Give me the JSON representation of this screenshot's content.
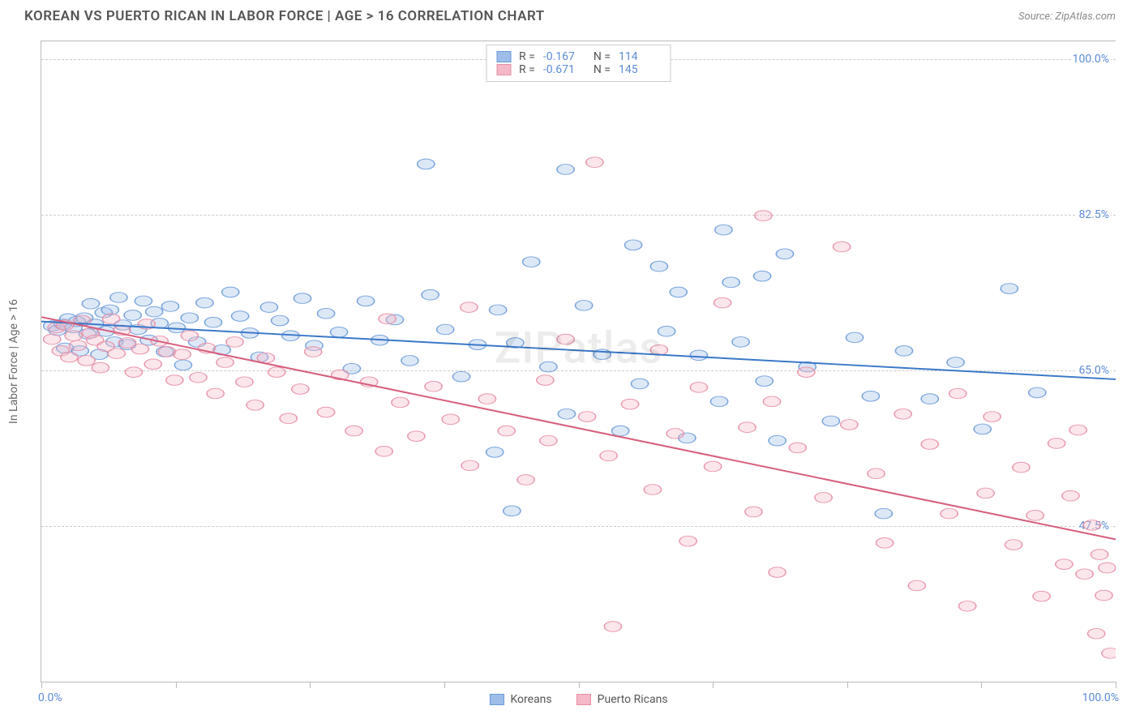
{
  "title": "KOREAN VS PUERTO RICAN IN LABOR FORCE | AGE > 16 CORRELATION CHART",
  "source": "Source: ZipAtlas.com",
  "watermark": "ZIPatlas",
  "yaxis_title": "In Labor Force | Age > 16",
  "chart": {
    "type": "scatter",
    "background_color": "#ffffff",
    "grid_color": "#cccccc",
    "grid_dash": "4,4",
    "xlim": [
      0,
      100
    ],
    "ylim": [
      30,
      102
    ],
    "xticks": [
      0,
      12.5,
      25,
      37.5,
      50,
      62.5,
      75,
      87.5,
      100
    ],
    "yticks": [
      47.5,
      65.0,
      82.5,
      100.0
    ],
    "ytick_labels": [
      "47.5%",
      "65.0%",
      "82.5%",
      "100.0%"
    ],
    "x_start_label": "0.0%",
    "x_end_label": "100.0%",
    "marker_radius": 8,
    "marker_fill_opacity": 0.35,
    "marker_stroke_opacity": 0.9,
    "line_width": 2.5,
    "series": [
      {
        "name": "Koreans",
        "color_fill": "#9dbde8",
        "color_stroke": "#6b9bd8",
        "line_color": "#3b78c9",
        "R": "-0.167",
        "N": "114",
        "trend": {
          "x1": 0,
          "y1": 70.5,
          "x2": 100,
          "y2": 64.0
        },
        "points": [
          [
            1,
            70
          ],
          [
            1.5,
            69.5
          ],
          [
            2,
            70.2
          ],
          [
            2.2,
            67.5
          ],
          [
            2.5,
            70.8
          ],
          [
            3,
            69.8
          ],
          [
            3.3,
            70.5
          ],
          [
            3.6,
            67.2
          ],
          [
            4,
            70.9
          ],
          [
            4.3,
            69.1
          ],
          [
            4.6,
            72.5
          ],
          [
            5,
            70.2
          ],
          [
            5.4,
            66.8
          ],
          [
            5.8,
            71.5
          ],
          [
            6,
            69.4
          ],
          [
            6.4,
            71.8
          ],
          [
            6.8,
            68.2
          ],
          [
            7.2,
            73.2
          ],
          [
            7.6,
            70.1
          ],
          [
            8,
            67.9
          ],
          [
            8.5,
            71.2
          ],
          [
            9,
            69.6
          ],
          [
            9.5,
            72.8
          ],
          [
            10,
            68.4
          ],
          [
            10.5,
            71.6
          ],
          [
            11,
            70.3
          ],
          [
            11.5,
            67.1
          ],
          [
            12,
            72.2
          ],
          [
            12.6,
            69.8
          ],
          [
            13.2,
            65.6
          ],
          [
            13.8,
            70.9
          ],
          [
            14.5,
            68.2
          ],
          [
            15.2,
            72.6
          ],
          [
            16,
            70.4
          ],
          [
            16.8,
            67.3
          ],
          [
            17.6,
            73.8
          ],
          [
            18.5,
            71.1
          ],
          [
            19.4,
            69.2
          ],
          [
            20.3,
            66.5
          ],
          [
            21.2,
            72.1
          ],
          [
            22.2,
            70.6
          ],
          [
            23.2,
            68.9
          ],
          [
            24.3,
            73.1
          ],
          [
            25.4,
            67.8
          ],
          [
            26.5,
            71.4
          ],
          [
            27.7,
            69.3
          ],
          [
            28.9,
            65.2
          ],
          [
            30.2,
            72.8
          ],
          [
            31.5,
            68.4
          ],
          [
            32.9,
            70.7
          ],
          [
            34.3,
            66.1
          ],
          [
            35.8,
            88.2
          ],
          [
            36.2,
            73.5
          ],
          [
            37.6,
            69.6
          ],
          [
            39.1,
            64.3
          ],
          [
            40.6,
            67.9
          ],
          [
            42.2,
            55.8
          ],
          [
            42.5,
            71.8
          ],
          [
            43.8,
            49.2
          ],
          [
            44.1,
            68.1
          ],
          [
            45.6,
            77.2
          ],
          [
            47.2,
            65.4
          ],
          [
            48.8,
            87.6
          ],
          [
            48.9,
            60.1
          ],
          [
            50.5,
            72.3
          ],
          [
            52.2,
            66.8
          ],
          [
            53.9,
            58.2
          ],
          [
            55.1,
            79.1
          ],
          [
            55.7,
            63.5
          ],
          [
            57.5,
            76.7
          ],
          [
            58.2,
            69.4
          ],
          [
            59.3,
            73.8
          ],
          [
            60.1,
            57.4
          ],
          [
            61.2,
            66.7
          ],
          [
            63.1,
            61.5
          ],
          [
            63.5,
            80.8
          ],
          [
            64.2,
            74.9
          ],
          [
            65.1,
            68.2
          ],
          [
            67.1,
            75.6
          ],
          [
            67.3,
            63.8
          ],
          [
            68.5,
            57.1
          ],
          [
            69.2,
            78.1
          ],
          [
            71.3,
            65.4
          ],
          [
            73.5,
            59.3
          ],
          [
            75.7,
            68.7
          ],
          [
            77.2,
            62.1
          ],
          [
            78.4,
            48.9
          ],
          [
            80.3,
            67.2
          ],
          [
            82.7,
            61.8
          ],
          [
            85.1,
            65.9
          ],
          [
            87.6,
            58.4
          ],
          [
            90.1,
            74.2
          ],
          [
            92.7,
            62.5
          ]
        ]
      },
      {
        "name": "Puerto Ricans",
        "color_fill": "#f4b8c6",
        "color_stroke": "#e78fa6",
        "line_color": "#d85f7e",
        "R": "-0.671",
        "N": "145",
        "trend": {
          "x1": 0,
          "y1": 71.0,
          "x2": 100,
          "y2": 46.0
        },
        "points": [
          [
            1,
            68.5
          ],
          [
            1.4,
            69.8
          ],
          [
            1.8,
            67.2
          ],
          [
            2.2,
            70.1
          ],
          [
            2.6,
            66.5
          ],
          [
            3,
            68.9
          ],
          [
            3.4,
            67.8
          ],
          [
            3.8,
            70.6
          ],
          [
            4.2,
            66.1
          ],
          [
            4.6,
            69.2
          ],
          [
            5,
            68.4
          ],
          [
            5.5,
            65.3
          ],
          [
            6,
            67.7
          ],
          [
            6.5,
            70.8
          ],
          [
            7,
            66.9
          ],
          [
            7.5,
            69.5
          ],
          [
            8,
            68.1
          ],
          [
            8.6,
            64.8
          ],
          [
            9.2,
            67.4
          ],
          [
            9.8,
            70.2
          ],
          [
            10.4,
            65.7
          ],
          [
            11,
            68.3
          ],
          [
            11.7,
            67.1
          ],
          [
            12.4,
            63.9
          ],
          [
            13.1,
            66.8
          ],
          [
            13.8,
            68.9
          ],
          [
            14.6,
            64.2
          ],
          [
            15.4,
            67.5
          ],
          [
            16.2,
            62.4
          ],
          [
            17.1,
            65.9
          ],
          [
            18,
            68.2
          ],
          [
            18.9,
            63.7
          ],
          [
            19.9,
            61.1
          ],
          [
            20.9,
            66.4
          ],
          [
            21.9,
            64.8
          ],
          [
            23,
            59.6
          ],
          [
            24.1,
            62.9
          ],
          [
            25.3,
            67.1
          ],
          [
            26.5,
            60.3
          ],
          [
            27.8,
            64.5
          ],
          [
            29.1,
            58.2
          ],
          [
            30.5,
            63.7
          ],
          [
            31.9,
            55.9
          ],
          [
            32.2,
            70.8
          ],
          [
            33.4,
            61.4
          ],
          [
            34.9,
            57.6
          ],
          [
            36.5,
            63.2
          ],
          [
            38.1,
            59.5
          ],
          [
            39.8,
            72.1
          ],
          [
            39.9,
            54.3
          ],
          [
            41.5,
            61.8
          ],
          [
            43.3,
            58.2
          ],
          [
            45.1,
            52.7
          ],
          [
            46.9,
            63.9
          ],
          [
            47.2,
            57.1
          ],
          [
            48.8,
            68.5
          ],
          [
            50.8,
            59.8
          ],
          [
            51.5,
            88.4
          ],
          [
            52.8,
            55.4
          ],
          [
            53.2,
            36.2
          ],
          [
            54.8,
            61.2
          ],
          [
            56.9,
            51.6
          ],
          [
            57.5,
            67.3
          ],
          [
            59.0,
            57.9
          ],
          [
            60.2,
            45.8
          ],
          [
            61.2,
            63.1
          ],
          [
            62.5,
            54.2
          ],
          [
            63.4,
            72.6
          ],
          [
            65.7,
            58.6
          ],
          [
            66.3,
            49.1
          ],
          [
            67.2,
            82.4
          ],
          [
            68.0,
            61.5
          ],
          [
            68.5,
            42.3
          ],
          [
            70.4,
            56.3
          ],
          [
            71.2,
            64.8
          ],
          [
            72.8,
            50.7
          ],
          [
            74.5,
            78.9
          ],
          [
            75.2,
            58.9
          ],
          [
            77.7,
            53.4
          ],
          [
            78.5,
            45.6
          ],
          [
            80.2,
            60.1
          ],
          [
            81.5,
            40.8
          ],
          [
            82.7,
            56.7
          ],
          [
            84.5,
            48.9
          ],
          [
            85.3,
            62.4
          ],
          [
            86.2,
            38.5
          ],
          [
            87.9,
            51.2
          ],
          [
            88.5,
            59.8
          ],
          [
            90.5,
            45.4
          ],
          [
            91.2,
            54.1
          ],
          [
            92.5,
            48.7
          ],
          [
            93.1,
            39.6
          ],
          [
            94.5,
            56.8
          ],
          [
            95.2,
            43.2
          ],
          [
            95.8,
            50.9
          ],
          [
            96.5,
            58.3
          ],
          [
            97.1,
            42.1
          ],
          [
            97.8,
            47.6
          ],
          [
            98.2,
            35.4
          ],
          [
            98.5,
            44.3
          ],
          [
            98.9,
            39.7
          ],
          [
            99.2,
            42.8
          ],
          [
            99.5,
            33.2
          ]
        ]
      }
    ]
  }
}
